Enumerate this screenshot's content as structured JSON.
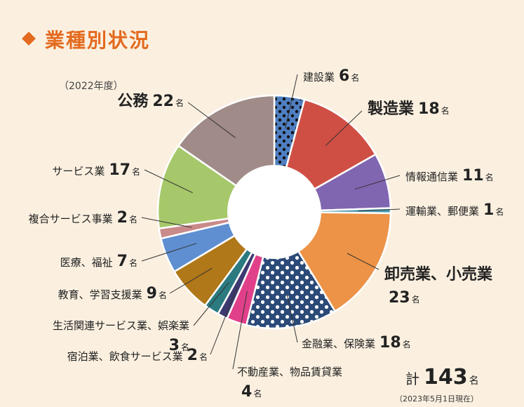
{
  "title": "業種別状況",
  "subtitle": "（2022年度）",
  "unit": "名",
  "total": {
    "label": "計",
    "value": 143,
    "unit": "名"
  },
  "as_of": "（2023年5月1日現在）",
  "chart_data": {
    "type": "pie",
    "donut": true,
    "direction": "clockwise-from-top",
    "slices": [
      {
        "label": "建設業",
        "value": 6,
        "color": "#4f7fc2",
        "pattern": "dots"
      },
      {
        "label": "製造業",
        "value": 18,
        "color": "#d04f45"
      },
      {
        "label": "情報通信業",
        "value": 11,
        "color": "#8066b0"
      },
      {
        "label": "運輸業、郵便業",
        "value": 1,
        "color": "#4a9bb0"
      },
      {
        "label": "卸売業、小売業",
        "value": 23,
        "color": "#ec9347"
      },
      {
        "label": "金融業、保険業",
        "value": 18,
        "color": "#2b4a78",
        "pattern": "dots"
      },
      {
        "label": "不動産業、物品賃貸業",
        "value": 4,
        "color": "#e0408a"
      },
      {
        "label": "宿泊業、飲食サービス業",
        "value": 2,
        "color": "#3c3a70"
      },
      {
        "label": "生活関連サービス業、娯楽業",
        "value": 3,
        "color": "#2a7a80"
      },
      {
        "label": "教育、学習支援業",
        "value": 9,
        "color": "#b07818"
      },
      {
        "label": "医療、福祉",
        "value": 7,
        "color": "#5f8fd0"
      },
      {
        "label": "複合サービス事業",
        "value": 2,
        "color": "#c98a8a"
      },
      {
        "label": "サービス業",
        "value": 17,
        "color": "#a6c86a"
      },
      {
        "label": "公務",
        "value": 22,
        "color": "#a08b88"
      }
    ]
  }
}
